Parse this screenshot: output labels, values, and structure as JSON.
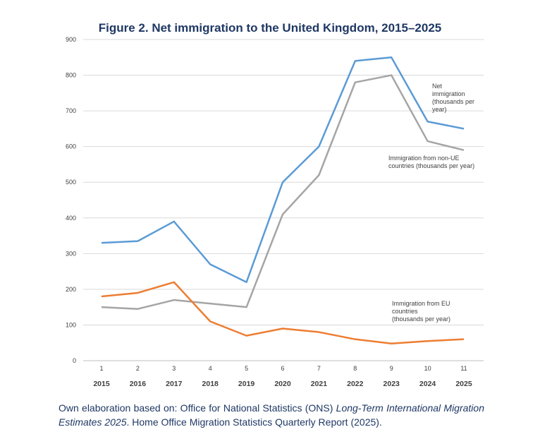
{
  "chart_data": {
    "type": "line",
    "title": "Figure 2. Net immigration to the United Kingdom, 2015–2025",
    "x": [
      1,
      2,
      3,
      4,
      5,
      6,
      7,
      8,
      9,
      10,
      11
    ],
    "x_tick_labels": [
      "1",
      "2",
      "3",
      "4",
      "5",
      "6",
      "7",
      "8",
      "9",
      "10",
      "11"
    ],
    "x_year_labels": [
      "2015",
      "2016",
      "2017",
      "2018",
      "2019",
      "2020",
      "2021",
      "2022",
      "2023",
      "2024",
      "2025"
    ],
    "ylim": [
      0,
      900
    ],
    "y_ticks": [
      0,
      100,
      200,
      300,
      400,
      500,
      600,
      700,
      800,
      900
    ],
    "grid": true,
    "xlabel": "",
    "ylabel": "",
    "series": [
      {
        "name": "Net immigration (thousands per year)",
        "name_lines": [
          "Net",
          "immigration",
          "(thousands per",
          "year)"
        ],
        "color": "#5b9bd5",
        "values": [
          330,
          335,
          390,
          270,
          220,
          500,
          600,
          840,
          850,
          670,
          650
        ]
      },
      {
        "name": "Immigration from non-UE countries (thousands per year)",
        "name_lines": [
          "Immigration from non-UE",
          "countries (thousands per year)"
        ],
        "color": "#a5a5a5",
        "values": [
          150,
          145,
          170,
          160,
          150,
          410,
          520,
          780,
          800,
          615,
          590
        ]
      },
      {
        "name": "Immigration from EU countries (thousands per year)",
        "name_lines": [
          "Immigration from EU",
          "countries",
          "(thousands per year)"
        ],
        "color": "#ed7d31",
        "values": [
          180,
          190,
          220,
          110,
          70,
          90,
          80,
          60,
          48,
          55,
          60
        ]
      }
    ]
  },
  "caption": {
    "prefix": "Own elaboration based on: Office for National Statistics (ONS) ",
    "italic": "Long-Term International Migration Estimates 2025",
    "suffix": ". Home Office Migration Statistics Quarterly Report (2025)."
  }
}
